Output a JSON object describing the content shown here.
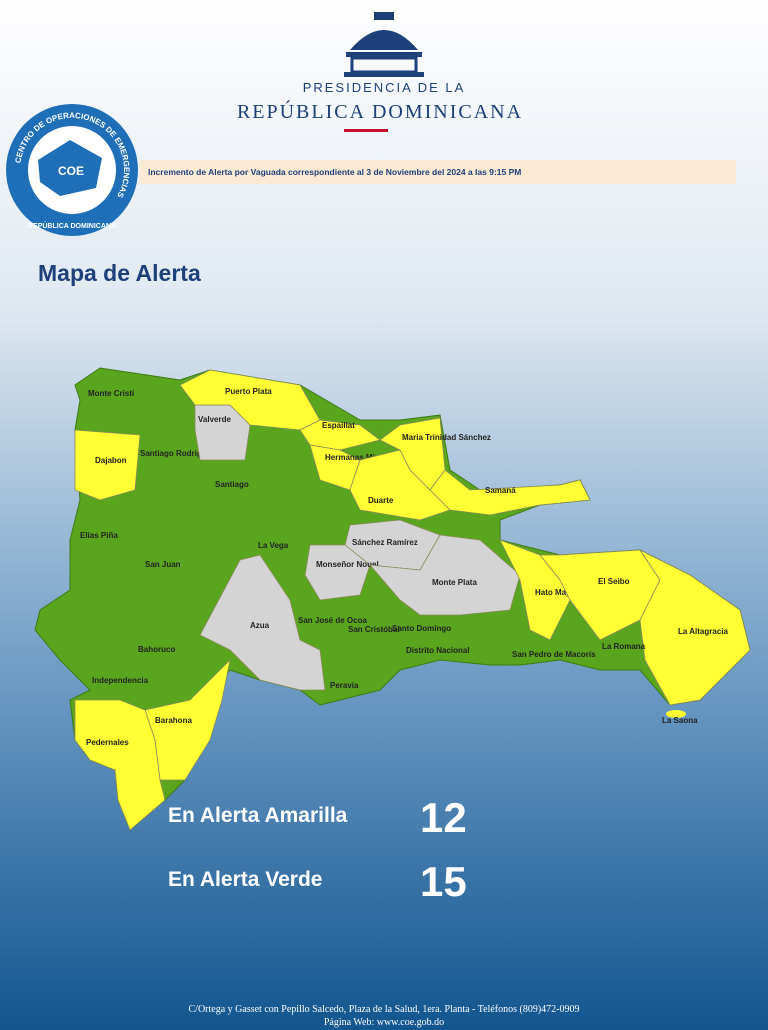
{
  "header": {
    "line1": "PRESIDENCIA DE LA",
    "line2": "REPÚBLICA DOMINICANA"
  },
  "logo": {
    "ring_text": "CENTRO DE OPERACIONES DE EMERGENCIAS",
    "bottom_text": "REPÚBLICA DOMINICANA",
    "center_text": "COE"
  },
  "banner": "Incremento de Alerta por Vaguada correspondiente al 3 de Noviembre del 2024 a las 9:15 PM",
  "title": "Mapa de Alerta",
  "alert_colors": {
    "yellow": "#ffff33",
    "green": "#5aa51e",
    "gray": "#d4d4d4"
  },
  "provinces": [
    {
      "name": "Monte Cristi",
      "alert": "green"
    },
    {
      "name": "Dajabon",
      "alert": "yellow"
    },
    {
      "name": "Santiago Rodriguez",
      "alert": "green"
    },
    {
      "name": "Valverde",
      "alert": "gray"
    },
    {
      "name": "Santiago",
      "alert": "green"
    },
    {
      "name": "Puerto Plata",
      "alert": "yellow"
    },
    {
      "name": "Espaillat",
      "alert": "yellow"
    },
    {
      "name": "Hermanas Mirabal",
      "alert": "yellow"
    },
    {
      "name": "Maria Trinidad Sánchez",
      "alert": "yellow"
    },
    {
      "name": "Duarte",
      "alert": "yellow"
    },
    {
      "name": "Samaná",
      "alert": "yellow"
    },
    {
      "name": "Sánchez Ramírez",
      "alert": "gray"
    },
    {
      "name": "Elias Piña",
      "alert": "green"
    },
    {
      "name": "San Juan",
      "alert": "green"
    },
    {
      "name": "La Vega",
      "alert": "green"
    },
    {
      "name": "Monseñor Nouel",
      "alert": "gray"
    },
    {
      "name": "Monte Plata",
      "alert": "gray"
    },
    {
      "name": "Hato Mayor",
      "alert": "yellow"
    },
    {
      "name": "El Seibo",
      "alert": "yellow"
    },
    {
      "name": "La Altagracia",
      "alert": "yellow"
    },
    {
      "name": "La Saona",
      "alert": "yellow"
    },
    {
      "name": "Azua",
      "alert": "gray"
    },
    {
      "name": "San José de Ocoa",
      "alert": "green"
    },
    {
      "name": "San Cristóbal",
      "alert": "green"
    },
    {
      "name": "Santo Domingo",
      "alert": "green"
    },
    {
      "name": "Distrito Nacional",
      "alert": "green"
    },
    {
      "name": "San Pedro de Macorís",
      "alert": "green"
    },
    {
      "name": "La Romana",
      "alert": "green"
    },
    {
      "name": "Bahoruco",
      "alert": "green"
    },
    {
      "name": "Independencia",
      "alert": "green"
    },
    {
      "name": "Peravia",
      "alert": "green"
    },
    {
      "name": "Barahona",
      "alert": "yellow"
    },
    {
      "name": "Pedernales",
      "alert": "yellow"
    }
  ],
  "summary": [
    {
      "label": "En Alerta Amarilla",
      "count": 12
    },
    {
      "label": "En Alerta Verde",
      "count": 15
    }
  ],
  "footer": {
    "line1": "C/Ortega y Gasset con Pepillo Salcedo, Plaza de la Salud, 1era. Planta - Teléfonos (809)472-0909",
    "line2": "Página Web: www.coe.gob.do"
  }
}
